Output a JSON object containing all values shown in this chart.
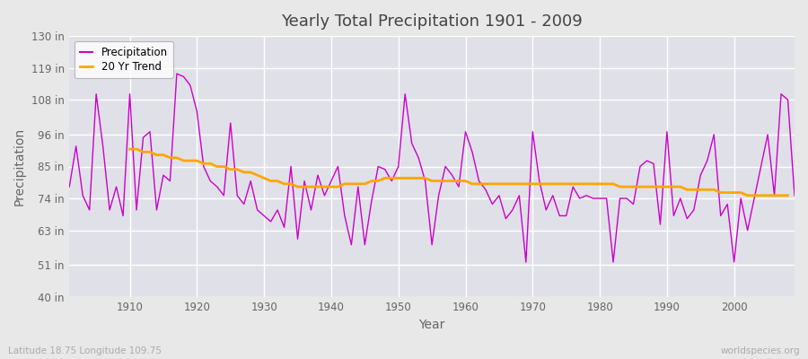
{
  "title": "Yearly Total Precipitation 1901 - 2009",
  "xlabel": "Year",
  "ylabel": "Precipitation",
  "subtitle_left": "Latitude 18.75 Longitude 109.75",
  "subtitle_right": "worldspecies.org",
  "legend_entries": [
    "Precipitation",
    "20 Yr Trend"
  ],
  "precip_color": "#cc00cc",
  "trend_color": "#ffa500",
  "bg_color": "#e0e0e8",
  "fig_bg_color": "#e8e8e8",
  "grid_color": "#cccccc",
  "ylim": [
    40,
    130
  ],
  "yticks": [
    40,
    51,
    63,
    74,
    85,
    96,
    108,
    119,
    130
  ],
  "ytick_labels": [
    "40 in",
    "51 in",
    "63 in",
    "74 in",
    "85 in",
    "96 in",
    "108 in",
    "119 in",
    "130 in"
  ],
  "years": [
    1901,
    1902,
    1903,
    1904,
    1905,
    1906,
    1907,
    1908,
    1909,
    1910,
    1911,
    1912,
    1913,
    1914,
    1915,
    1916,
    1917,
    1918,
    1919,
    1920,
    1921,
    1922,
    1923,
    1924,
    1925,
    1926,
    1927,
    1928,
    1929,
    1930,
    1931,
    1932,
    1933,
    1934,
    1935,
    1936,
    1937,
    1938,
    1939,
    1940,
    1941,
    1942,
    1943,
    1944,
    1945,
    1946,
    1947,
    1948,
    1949,
    1950,
    1951,
    1952,
    1953,
    1954,
    1955,
    1956,
    1957,
    1958,
    1959,
    1960,
    1961,
    1962,
    1963,
    1964,
    1965,
    1966,
    1967,
    1968,
    1969,
    1970,
    1971,
    1972,
    1973,
    1974,
    1975,
    1976,
    1977,
    1978,
    1979,
    1980,
    1981,
    1982,
    1983,
    1984,
    1985,
    1986,
    1987,
    1988,
    1989,
    1990,
    1991,
    1992,
    1993,
    1994,
    1995,
    1996,
    1997,
    1998,
    1999,
    2000,
    2001,
    2002,
    2003,
    2004,
    2005,
    2006,
    2007,
    2008,
    2009
  ],
  "precip": [
    78,
    92,
    75,
    70,
    110,
    92,
    70,
    78,
    68,
    110,
    70,
    95,
    97,
    70,
    82,
    80,
    117,
    116,
    113,
    104,
    85,
    80,
    78,
    75,
    100,
    75,
    72,
    80,
    70,
    68,
    66,
    70,
    64,
    85,
    60,
    80,
    70,
    82,
    75,
    80,
    85,
    68,
    58,
    78,
    58,
    73,
    85,
    84,
    80,
    85,
    110,
    93,
    88,
    80,
    58,
    75,
    85,
    82,
    78,
    97,
    90,
    80,
    77,
    72,
    75,
    67,
    70,
    75,
    52,
    97,
    80,
    70,
    75,
    68,
    68,
    78,
    74,
    75,
    74,
    74,
    74,
    52,
    74,
    74,
    72,
    85,
    87,
    86,
    65,
    97,
    68,
    74,
    67,
    70,
    82,
    87,
    96,
    68,
    72,
    52,
    74,
    63,
    74,
    85,
    96,
    75,
    110,
    108,
    75
  ],
  "trend": [
    null,
    null,
    null,
    null,
    null,
    null,
    null,
    null,
    null,
    91,
    91,
    90,
    90,
    89,
    89,
    88,
    88,
    87,
    87,
    87,
    86,
    86,
    85,
    85,
    84,
    84,
    83,
    83,
    82,
    81,
    80,
    80,
    79,
    79,
    78,
    78,
    78,
    78,
    78,
    78,
    78,
    79,
    79,
    79,
    79,
    80,
    80,
    81,
    81,
    81,
    81,
    81,
    81,
    81,
    80,
    80,
    80,
    80,
    80,
    80,
    79,
    79,
    79,
    79,
    79,
    79,
    79,
    79,
    79,
    79,
    79,
    79,
    79,
    79,
    79,
    79,
    79,
    79,
    79,
    79,
    79,
    79,
    78,
    78,
    78,
    78,
    78,
    78,
    78,
    78,
    78,
    78,
    77,
    77,
    77,
    77,
    77,
    76,
    76,
    76,
    76,
    75,
    75,
    75,
    75,
    75,
    75,
    75,
    null
  ]
}
